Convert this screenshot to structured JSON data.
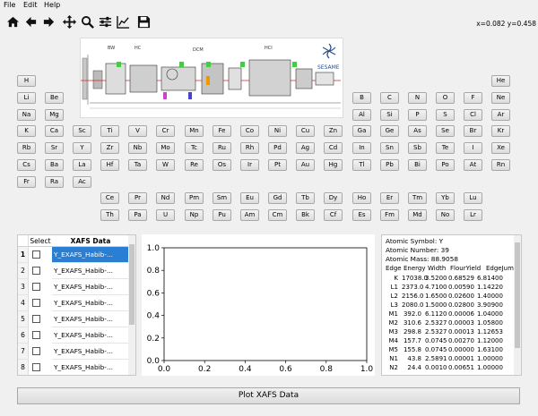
{
  "menu": [
    "File",
    "Edit",
    "Help"
  ],
  "toolbar": {
    "buttons": [
      "home-icon",
      "back-icon",
      "forward-icon",
      "pan-icon",
      "zoom-icon",
      "configure-icon",
      "axes-icon",
      "save-icon"
    ],
    "coords": "x=0.082 y=0.458"
  },
  "banner": {
    "logo_text": "SESAME",
    "beam_labels": [
      "BW",
      "HC",
      "DCM",
      "HCI"
    ]
  },
  "periodic_table": [
    [
      "H",
      "",
      "",
      "",
      "",
      "",
      "",
      "",
      "",
      "",
      "",
      "",
      "",
      "",
      "",
      "",
      "",
      "He"
    ],
    [
      "Li",
      "Be",
      "",
      "",
      "",
      "",
      "",
      "",
      "",
      "",
      "",
      "",
      "B",
      "C",
      "N",
      "O",
      "F",
      "Ne"
    ],
    [
      "Na",
      "Mg",
      "",
      "",
      "",
      "",
      "",
      "",
      "",
      "",
      "",
      "",
      "Al",
      "Si",
      "P",
      "S",
      "Cl",
      "Ar"
    ],
    [
      "K",
      "Ca",
      "Sc",
      "Ti",
      "V",
      "Cr",
      "Mn",
      "Fe",
      "Co",
      "Ni",
      "Cu",
      "Zn",
      "Ga",
      "Ge",
      "As",
      "Se",
      "Br",
      "Kr"
    ],
    [
      "Rb",
      "Sr",
      "Y",
      "Zr",
      "Nb",
      "Mo",
      "Tc",
      "Ru",
      "Rh",
      "Pd",
      "Ag",
      "Cd",
      "In",
      "Sn",
      "Sb",
      "Te",
      "I",
      "Xe"
    ],
    [
      "Cs",
      "Ba",
      "La",
      "Hf",
      "Ta",
      "W",
      "Re",
      "Os",
      "Ir",
      "Pt",
      "Au",
      "Hg",
      "Tl",
      "Pb",
      "Bi",
      "Po",
      "At",
      "Rn"
    ],
    [
      "Fr",
      "Ra",
      "Ac",
      "",
      "",
      "",
      "",
      "",
      "",
      "",
      "",
      "",
      "",
      "",
      "",
      "",
      "",
      ""
    ]
  ],
  "lanthanides": [
    "Ce",
    "Pr",
    "Nd",
    "Pm",
    "Sm",
    "Eu",
    "Gd",
    "Tb",
    "Dy",
    "Ho",
    "Er",
    "Tm",
    "Yb",
    "Lu"
  ],
  "actinides": [
    "Th",
    "Pa",
    "U",
    "Np",
    "Pu",
    "Am",
    "Cm",
    "Bk",
    "Cf",
    "Es",
    "Fm",
    "Md",
    "No",
    "Lr"
  ],
  "table": {
    "headers": [
      "Select",
      "XAFS Data"
    ],
    "rows": [
      {
        "num": "1",
        "data": "Y_EXAFS_Habib-...",
        "selected": true
      },
      {
        "num": "2",
        "data": "Y_EXAFS_Habib-...",
        "selected": false
      },
      {
        "num": "3",
        "data": "Y_EXAFS_Habib-...",
        "selected": false
      },
      {
        "num": "4",
        "data": "Y_EXAFS_Habib-...",
        "selected": false
      },
      {
        "num": "5",
        "data": "Y_EXAFS_Habib-...",
        "selected": false
      },
      {
        "num": "6",
        "data": "Y_EXAFS_Habib-...",
        "selected": false
      },
      {
        "num": "7",
        "data": "Y_EXAFS_Habib-...",
        "selected": false
      },
      {
        "num": "8",
        "data": "Y_EXAFS_Habib-...",
        "selected": false
      }
    ]
  },
  "plot": {
    "xticks": [
      "0.0",
      "0.2",
      "0.4",
      "0.6",
      "0.8",
      "1.0"
    ],
    "yticks": [
      "0.0",
      "0.2",
      "0.4",
      "0.6",
      "0.8",
      "1.0"
    ]
  },
  "info": {
    "symbol": "Atomic Symbol: Y",
    "number": "Atomic Number: 39",
    "mass": "Atomic Mass:  88.9058",
    "edge_header": [
      "Edge",
      "Energy",
      "Width",
      "FlourYield",
      "EdgeJump"
    ],
    "edges": [
      [
        "K",
        "17038.0",
        "3.5200",
        "0.68529",
        "6.81400"
      ],
      [
        "L1",
        "2373.0",
        "4.7100",
        "0.00590",
        "1.14220"
      ],
      [
        "L2",
        "2156.0",
        "1.6500",
        "0.02600",
        "1.40000"
      ],
      [
        "L3",
        "2080.0",
        "1.5000",
        "0.02800",
        "3.90900"
      ],
      [
        "M1",
        "392.0",
        "6.1120",
        "0.00006",
        "1.04000"
      ],
      [
        "M2",
        "310.6",
        "2.5327",
        "0.00003",
        "1.05800"
      ],
      [
        "M3",
        "298.8",
        "2.5327",
        "0.00013",
        "1.12653"
      ],
      [
        "M4",
        "157.7",
        "0.0745",
        "0.00270",
        "1.12000"
      ],
      [
        "M5",
        "155.8",
        "0.0745",
        "0.00000",
        "1.63100"
      ],
      [
        "N1",
        "43.8",
        "2.5891",
        "0.00001",
        "1.00000"
      ],
      [
        "N2",
        "24.4",
        "0.0010",
        "0.00651",
        "1.00000"
      ]
    ]
  },
  "plot_button": "Plot XAFS Data"
}
